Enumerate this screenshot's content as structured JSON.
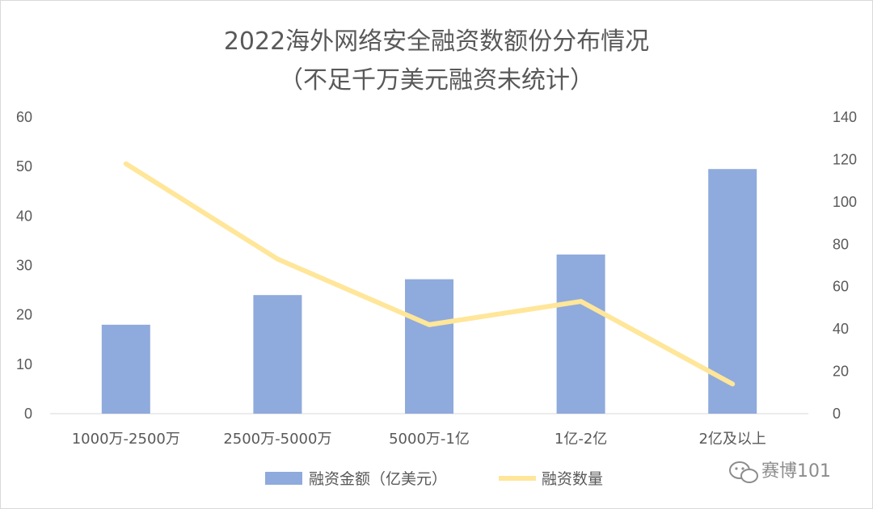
{
  "chart_data": {
    "type": "bar",
    "title_line1": "2022海外网络安全融资数额份分布情况",
    "title_line2": "（不足千万美元融资未统计）",
    "categories": [
      "1000万-2500万",
      "2500万-5000万",
      "5000万-1亿",
      "1亿-2亿",
      "2亿及以上"
    ],
    "series": [
      {
        "name": "融资金额（亿美元）",
        "type": "bar",
        "axis": "left",
        "values": [
          18,
          24,
          27.2,
          32.2,
          49.5
        ],
        "color": "#8faadc"
      },
      {
        "name": "融资数量",
        "type": "line",
        "axis": "right",
        "values": [
          118,
          73,
          42,
          53,
          14
        ],
        "color": "#ffe699"
      }
    ],
    "y_left": {
      "ylim": [
        0,
        60
      ],
      "ticks": [
        "0",
        "10",
        "20",
        "30",
        "40",
        "50",
        "60"
      ]
    },
    "y_right": {
      "ylim": [
        0,
        140
      ],
      "ticks": [
        "0",
        "20",
        "40",
        "60",
        "80",
        "100",
        "120",
        "140"
      ]
    },
    "grid": false,
    "legend_position": "bottom"
  },
  "watermark": {
    "text": "赛博101",
    "icon": "wechat-icon"
  }
}
